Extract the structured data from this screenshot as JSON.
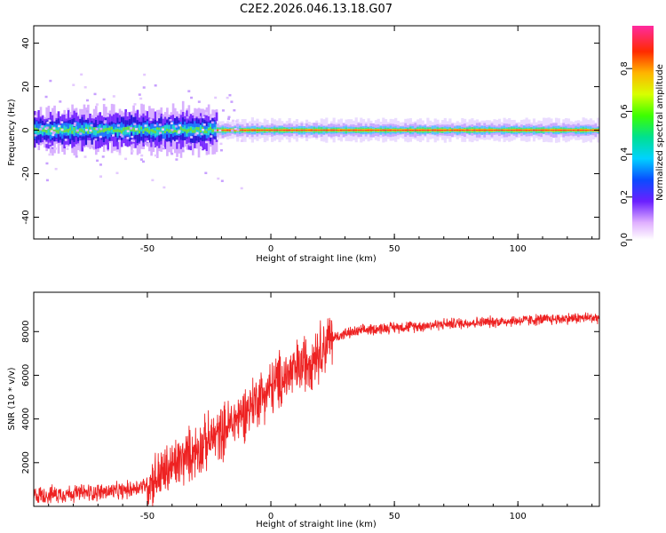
{
  "figure_title": "C2E2.2026.046.13.18.G07",
  "colors": {
    "snr_line": "#ee2222",
    "axes": "#000000",
    "background": "#ffffff"
  },
  "chart_data": [
    {
      "type": "heatmap",
      "xlabel": "Height of straight line (km)",
      "ylabel": "Frequency (Hz)",
      "xlim": [
        -96,
        133
      ],
      "ylim": [
        -50,
        48
      ],
      "xticks": [
        -50,
        0,
        50,
        100
      ],
      "yticks": [
        -40,
        -20,
        0,
        20,
        40
      ],
      "colorbar": {
        "label": "Normalized spectral amplitude",
        "range": [
          0.0,
          1.0
        ],
        "ticks": [
          "0.0",
          "0.2",
          "0.4",
          "0.6",
          "0.8"
        ]
      },
      "grid": false,
      "noisy_segment": {
        "x_range": [
          -96,
          -22
        ],
        "center_hz": 0,
        "spread_hz": 10
      },
      "stable_segment": {
        "x_range": [
          -22,
          133
        ],
        "center_hz": 0,
        "spread_hz": 2
      }
    },
    {
      "type": "line",
      "xlabel": "Height of straight line (km)",
      "ylabel": "SNR (10 * v/v)",
      "xlim": [
        -96,
        133
      ],
      "ylim": [
        0,
        9800
      ],
      "xticks": [
        -50,
        0,
        50,
        100
      ],
      "yticks": [
        2000,
        4000,
        6000,
        8000
      ],
      "grid": false,
      "series": [
        {
          "x": [
            -96,
            -80,
            -60,
            -50,
            -40,
            -30,
            -20,
            -15,
            -10,
            -5,
            0,
            5,
            10,
            15,
            20,
            25,
            30,
            40,
            50,
            60,
            70,
            80,
            90,
            100,
            110,
            120,
            133
          ],
          "y": [
            500,
            600,
            700,
            1000,
            1800,
            2600,
            3400,
            3900,
            4400,
            5000,
            5400,
            5900,
            6200,
            6700,
            7200,
            7700,
            7900,
            8100,
            8200,
            8250,
            8350,
            8400,
            8450,
            8500,
            8550,
            8600,
            8650
          ]
        }
      ]
    }
  ]
}
